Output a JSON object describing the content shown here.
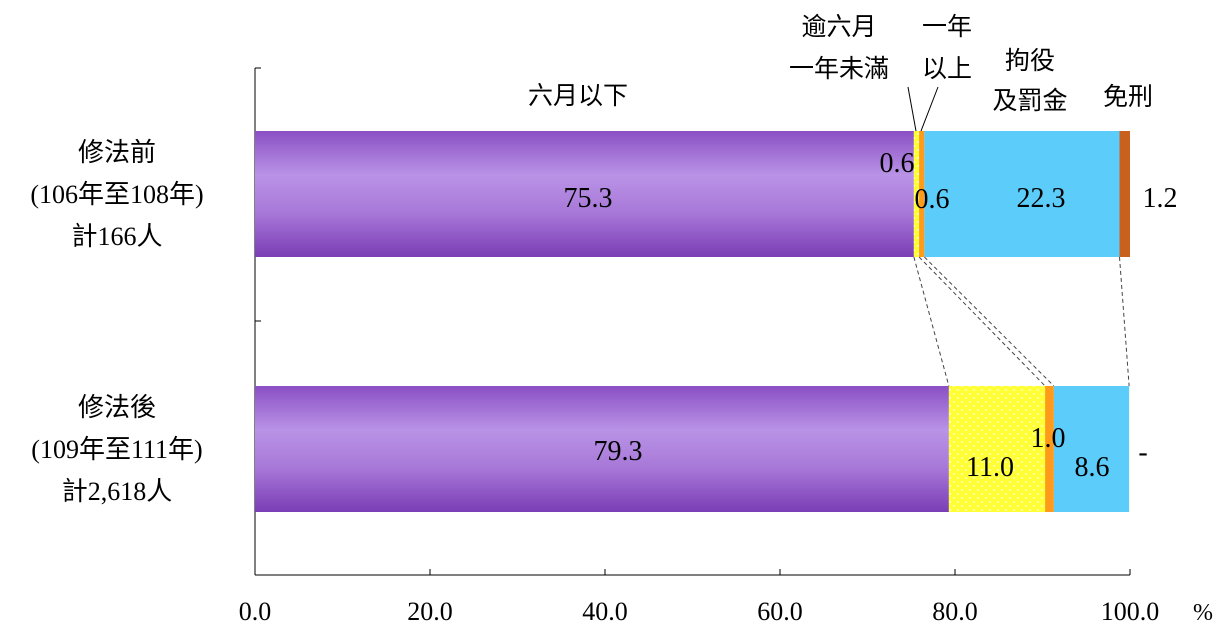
{
  "chart_data": {
    "type": "stacked-bar-horizontal",
    "unit": "%",
    "xlim": [
      0,
      100
    ],
    "x_ticks": [
      "0.0",
      "20.0",
      "40.0",
      "60.0",
      "80.0",
      "100.0"
    ],
    "categories": [
      {
        "lines": [
          "修法前",
          "(106年至108年)",
          "計166人"
        ]
      },
      {
        "lines": [
          "修法後",
          "(109年至111年)",
          "計2,618人"
        ]
      }
    ],
    "series": [
      {
        "name": "六月以下",
        "header_lines": [
          "六月以下"
        ],
        "color": "#a878d8",
        "pattern": "gradient-purple",
        "values": [
          75.3,
          79.3
        ],
        "labels": [
          "75.3",
          "79.3"
        ]
      },
      {
        "name": "逾六月一年未滿",
        "header_lines": [
          "逾六月",
          "一年未滿"
        ],
        "color": "#ffff33",
        "pattern": "dots",
        "values": [
          0.6,
          11.0
        ],
        "labels": [
          "0.6",
          "11.0"
        ]
      },
      {
        "name": "一年以上",
        "header_lines": [
          "一年",
          "以上"
        ],
        "color": "#ff9a1a",
        "pattern": "solid",
        "values": [
          0.6,
          1.0
        ],
        "labels": [
          "0.6",
          "1.0"
        ]
      },
      {
        "name": "拘役及罰金",
        "header_lines": [
          "拘役",
          "及罰金"
        ],
        "color": "#5ccdfb",
        "pattern": "solid",
        "values": [
          22.3,
          8.6
        ],
        "labels": [
          "22.3",
          "8.6"
        ]
      },
      {
        "name": "免刑",
        "header_lines": [
          "免刑"
        ],
        "color": "#c8601e",
        "pattern": "solid",
        "values": [
          1.2,
          0
        ],
        "labels": [
          "1.2",
          "-"
        ]
      }
    ],
    "grid": false,
    "connectors": "dashed"
  }
}
